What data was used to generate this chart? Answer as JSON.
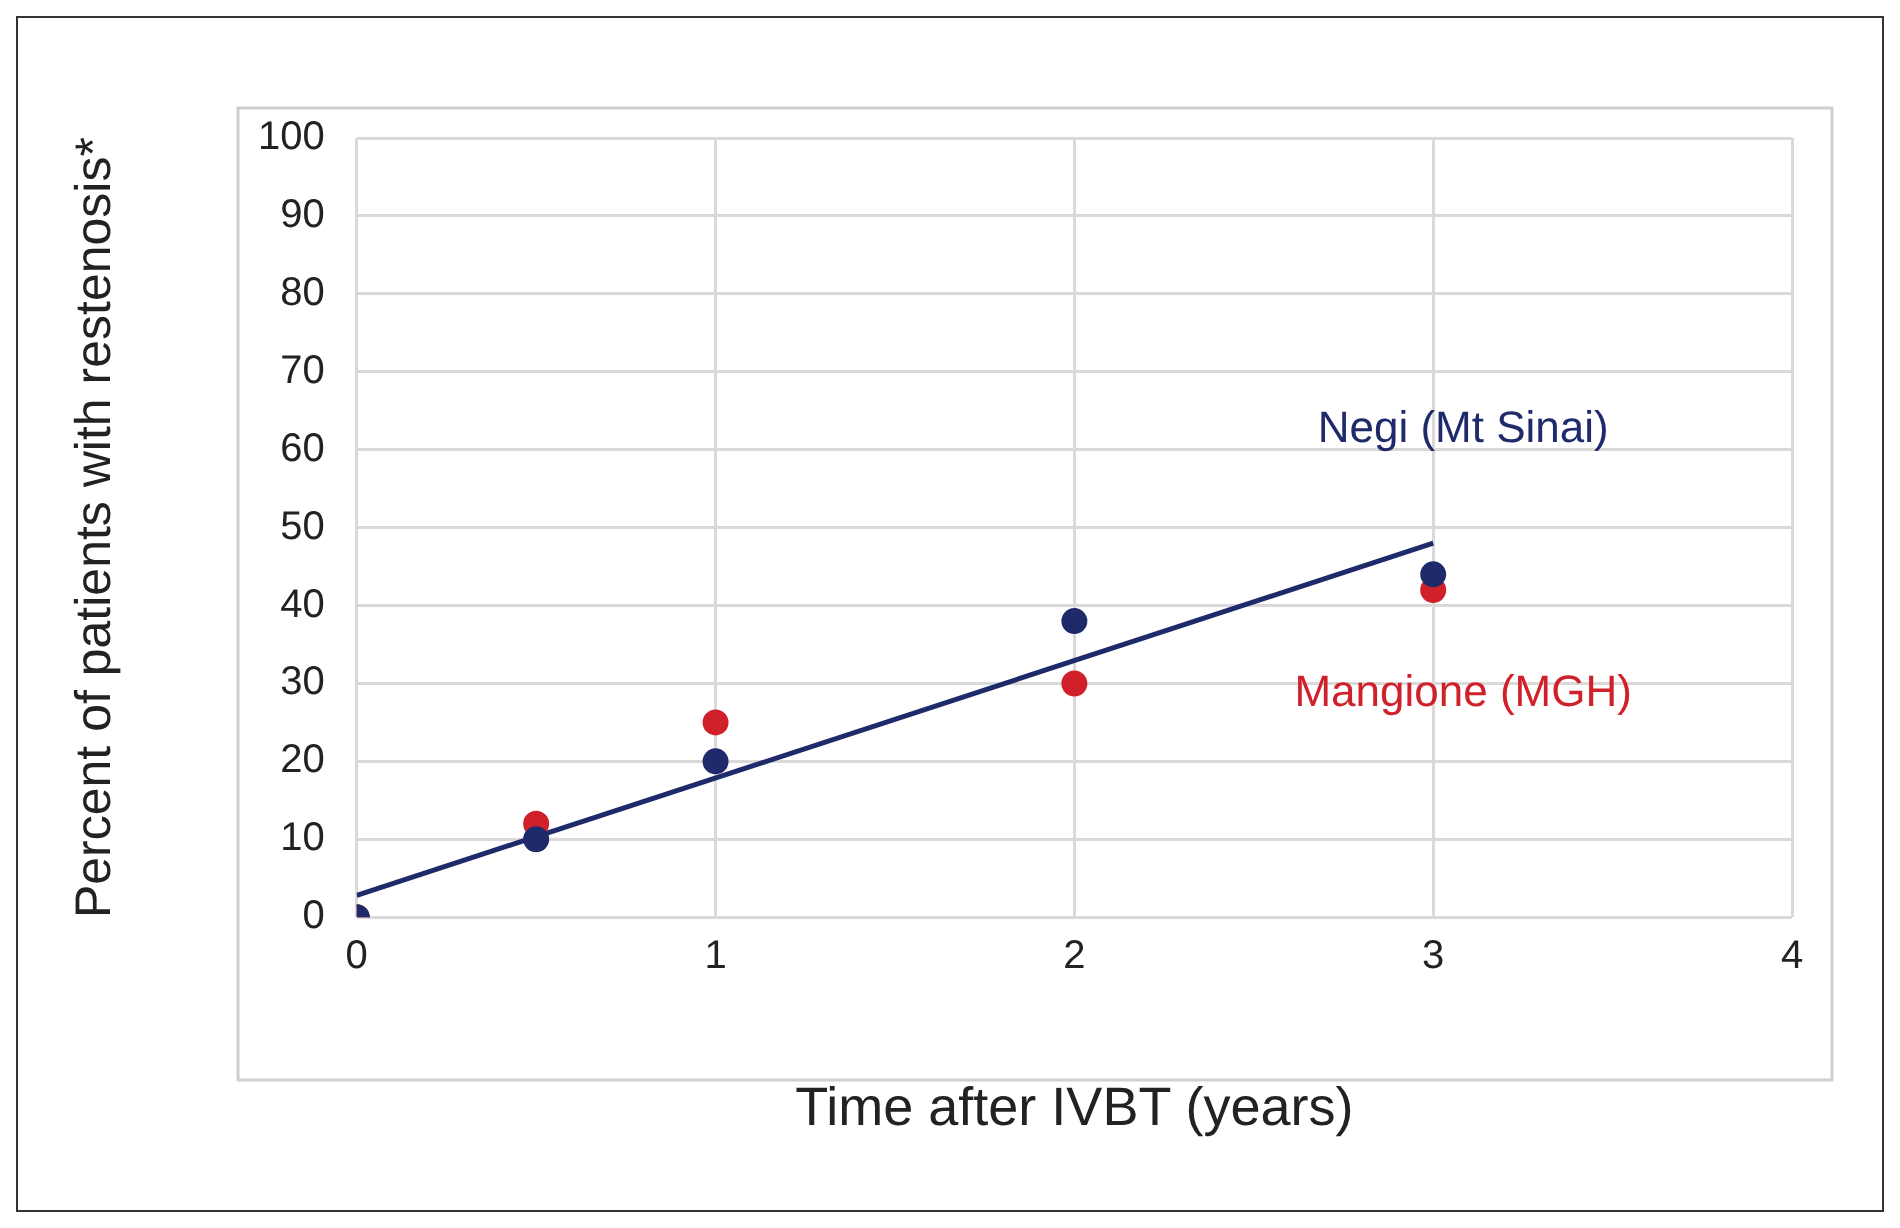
{
  "chart_data": {
    "type": "scatter",
    "xlabel": "Time after IVBT (years)",
    "ylabel": "Percent of patients with restenosis*",
    "xlim": [
      0,
      4
    ],
    "xticks": [
      0,
      1,
      2,
      3,
      4
    ],
    "ylim": [
      0,
      100
    ],
    "yticks": [
      0,
      10,
      20,
      30,
      40,
      50,
      60,
      70,
      80,
      90,
      100
    ],
    "grid": true,
    "legend": false,
    "marker": "circle",
    "series": [
      {
        "name": "Negi (Mt Sinai)",
        "color": "#1f2a6b",
        "x": [
          0,
          0.5,
          1,
          2,
          3
        ],
        "values": [
          0,
          10,
          20,
          38,
          44
        ]
      },
      {
        "name": "Mangione (MGH)",
        "color": "#d0202a",
        "x": [
          0,
          0.5,
          1,
          2,
          3
        ],
        "values": [
          0,
          12,
          25,
          30,
          42
        ]
      },
      {
        "type": "line",
        "color": "#1f2a6b",
        "x": [
          0,
          3
        ],
        "values": [
          2.8,
          48
        ],
        "marker": "none",
        "line_style": "solid"
      }
    ]
  }
}
